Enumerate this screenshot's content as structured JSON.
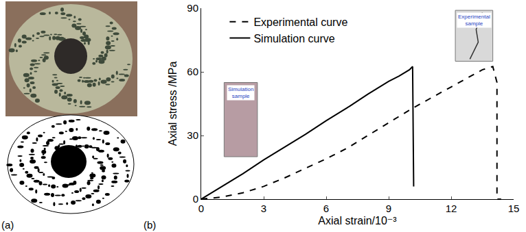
{
  "panel_labels": [
    "(a)",
    "(b)"
  ],
  "chart_data": {
    "type": "line",
    "xlabel": "Axial strain/10⁻³",
    "ylabel": "Axial stress /MPa",
    "xlim": [
      0,
      15
    ],
    "ylim": [
      0,
      90
    ],
    "xticks": [
      0,
      3,
      6,
      9,
      12,
      15
    ],
    "yticks": [
      0,
      30,
      60,
      90
    ],
    "grid": false,
    "legend": "upper left",
    "series": [
      {
        "name": "Experimental curve",
        "color": "#000000",
        "line_style": "dashed",
        "x": [
          0,
          1,
          2,
          3,
          4,
          5,
          6,
          7,
          8,
          9,
          10,
          11,
          12,
          13,
          13.5,
          14,
          14.1,
          14.2,
          14.2,
          14.4
        ],
        "values": [
          0,
          1,
          3,
          6,
          10,
          14.5,
          19,
          24,
          30,
          36,
          42,
          47.5,
          53,
          58.5,
          61,
          62.5,
          59,
          55,
          0,
          0
        ]
      },
      {
        "name": "Simulation curve",
        "color": "#000000",
        "line_style": "solid",
        "x": [
          0,
          1,
          2,
          3,
          4,
          5,
          6,
          7,
          8,
          9,
          9.5,
          10,
          10.1,
          10.15,
          10.2
        ],
        "values": [
          0,
          6,
          12,
          18.5,
          24.5,
          30.5,
          37,
          43,
          49.5,
          55.5,
          58,
          61,
          62,
          62.5,
          6
        ]
      }
    ],
    "annotations": [
      "Simulation sample",
      "Experimental sample"
    ]
  }
}
